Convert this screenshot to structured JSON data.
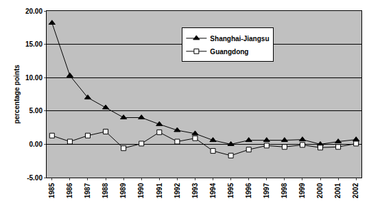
{
  "chart_data": {
    "type": "line",
    "y_label": "percentage points",
    "categories": [
      "1985",
      "1986",
      "1987",
      "1988",
      "1989",
      "1990",
      "1991",
      "1992",
      "1993",
      "1994",
      "1995",
      "1996",
      "1997",
      "1998",
      "1999",
      "2000",
      "2001",
      "2002"
    ],
    "series": [
      {
        "name": "Shanghai-Jiangsu",
        "color": "#000000",
        "marker": "triangle-up",
        "values": [
          18.2,
          10.3,
          7.0,
          5.5,
          4.0,
          4.0,
          3.0,
          2.1,
          1.6,
          0.6,
          0.0,
          0.6,
          0.6,
          0.6,
          0.7,
          0.0,
          0.4,
          0.7
        ]
      },
      {
        "name": "Guangdong",
        "color": "#000000",
        "marker": "square-open",
        "values": [
          1.3,
          0.4,
          1.3,
          1.9,
          -0.6,
          0.1,
          1.8,
          0.4,
          0.9,
          -1.0,
          -1.7,
          -0.8,
          -0.2,
          -0.4,
          -0.1,
          -0.5,
          -0.4,
          0.1
        ]
      }
    ],
    "ylim": [
      -5,
      20
    ],
    "yticks": [
      {
        "value": -5,
        "label": "-5.00"
      },
      {
        "value": 0,
        "label": "0.00"
      },
      {
        "value": 5,
        "label": "5.00"
      },
      {
        "value": 10,
        "label": "10.00"
      },
      {
        "value": 15,
        "label": "15.00"
      },
      {
        "value": 20,
        "label": "20.00"
      }
    ],
    "grid": true,
    "legend": "upper center"
  }
}
